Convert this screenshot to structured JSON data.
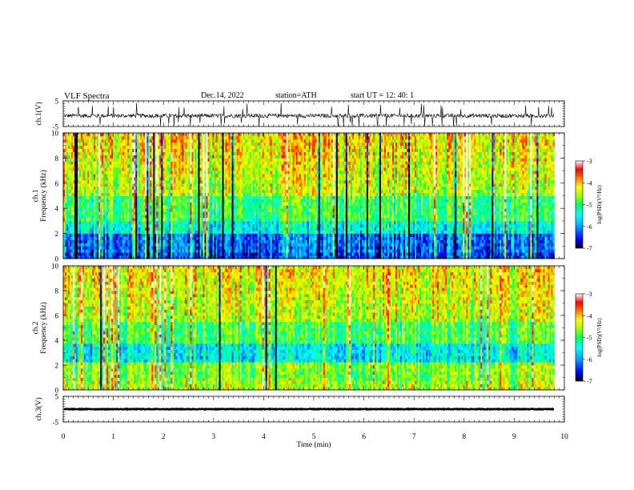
{
  "header": {
    "title": "VLF  Spectra",
    "date": "Dec.14, 2022",
    "station": "station=ATH",
    "start": "start  UT  =    12: 40: 1"
  },
  "chart_data": [
    {
      "type": "line",
      "name": "ch1-waveform",
      "ylabel": "ch.1(V)",
      "ylim": [
        -5,
        5
      ],
      "yticks": [
        "5",
        "-5"
      ],
      "xlim": [
        0,
        10
      ],
      "baseline": -0.8,
      "noise_amplitude": 1.6,
      "data_end": 9.8
    },
    {
      "type": "heatmap",
      "name": "ch1-spectrogram",
      "ylabel_top": "ch.1",
      "ylabel": "Frequency  (kHz)",
      "ylim": [
        0,
        10
      ],
      "yticks": [
        "0",
        "2",
        "4",
        "6",
        "8",
        "10"
      ],
      "xlim": [
        0,
        10
      ],
      "data_end": 9.8,
      "colorbar": {
        "label": "log(PSD)(V²/Hz)",
        "range": [
          -7,
          -3
        ],
        "ticks": [
          "-3",
          "-4",
          "-5",
          "-6",
          "-7"
        ]
      }
    },
    {
      "type": "heatmap",
      "name": "ch2-spectrogram",
      "ylabel_top": "ch.2",
      "ylabel": "Frequency  (kHz)",
      "ylim": [
        0,
        10
      ],
      "yticks": [
        "0",
        "2",
        "4",
        "6",
        "8",
        "10"
      ],
      "xlim": [
        0,
        10
      ],
      "data_end": 9.8,
      "colorbar": {
        "label": "log(PSD)(V²/Hz)",
        "range": [
          -7,
          -3
        ],
        "ticks": [
          "-3",
          "-4",
          "-5",
          "-6",
          "-7"
        ]
      }
    },
    {
      "type": "line",
      "name": "ch3-waveform",
      "ylabel": "ch.3(V)",
      "ylim": [
        -5,
        5
      ],
      "yticks": [
        "5",
        "-5"
      ],
      "xlim": [
        0,
        10
      ],
      "baseline": 0.0,
      "noise_amplitude": 0.25,
      "data_end": 9.8
    }
  ],
  "xaxis": {
    "label": "Time  (min)",
    "ticks": [
      "0",
      "1",
      "2",
      "3",
      "4",
      "5",
      "6",
      "7",
      "8",
      "9",
      "10"
    ]
  },
  "colors": {
    "spectral_scale": [
      "#000000",
      "#0000ff",
      "#00a0ff",
      "#00ffff",
      "#00ff60",
      "#a0ff00",
      "#ffff00",
      "#ff8000",
      "#ff0000",
      "#ffffff"
    ],
    "trace": "#000000"
  }
}
